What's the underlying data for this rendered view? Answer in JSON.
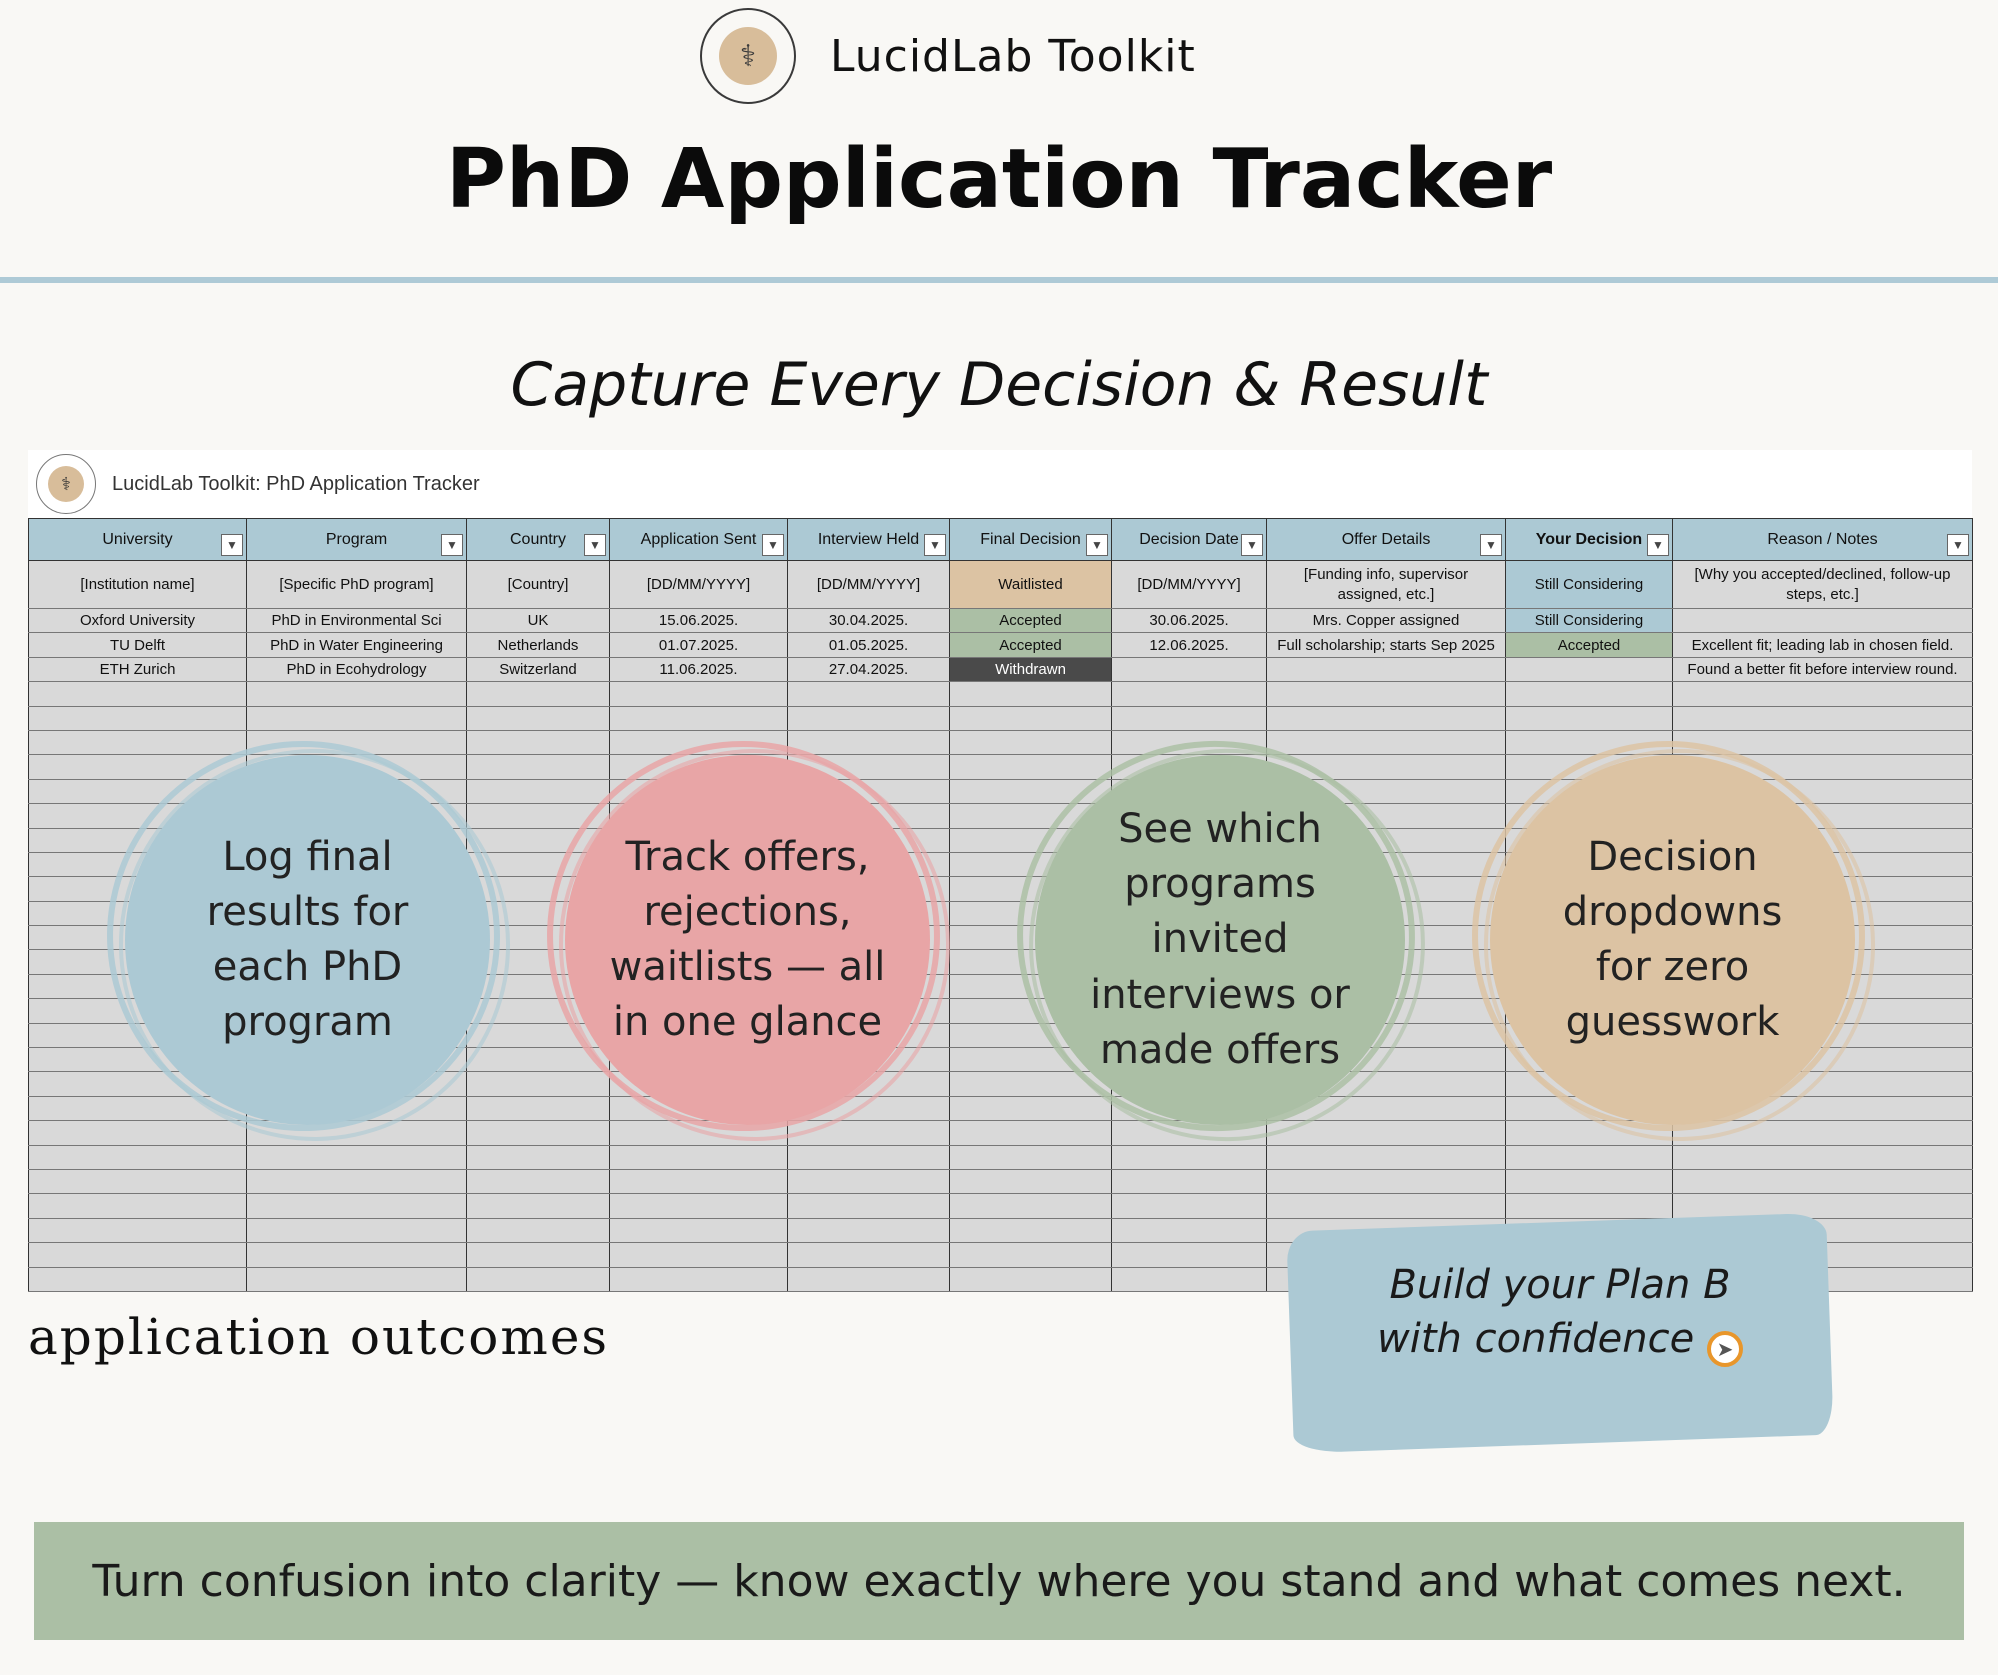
{
  "brand": {
    "name": "LucidLab Toolkit",
    "logo_icon": "microscope-icon"
  },
  "title": "PhD Application Tracker",
  "subtitle": "Capture Every Decision & Result",
  "sheet": {
    "title": "LucidLab Toolkit: PhD Application Tracker",
    "columns": [
      "University",
      "Program",
      "Country",
      "Application Sent",
      "Interview Held",
      "Final Decision",
      "Decision Date",
      "Offer Details",
      "Your Decision",
      "Reason / Notes"
    ],
    "rows": [
      [
        "[Institution name]",
        "[Specific PhD program]",
        "[Country]",
        "[DD/MM/YYYY]",
        "[DD/MM/YYYY]",
        "Waitlisted",
        "[DD/MM/YYYY]",
        "[Funding info, supervisor assigned, etc.]",
        "Still Considering",
        "[Why you accepted/declined, follow-up steps, etc.]"
      ],
      [
        "Oxford University",
        "PhD in Environmental Sci",
        "UK",
        "15.06.2025.",
        "30.04.2025.",
        "Accepted",
        "30.06.2025.",
        "Mrs. Copper assigned",
        "Still Considering",
        ""
      ],
      [
        "TU Delft",
        "PhD in Water Engineering",
        "Netherlands",
        "01.07.2025.",
        "01.05.2025.",
        "Accepted",
        "12.06.2025.",
        "Full scholarship; starts Sep 2025",
        "Accepted",
        "Excellent fit; leading lab in chosen field."
      ],
      [
        "ETH Zurich",
        "PhD in Ecohydrology",
        "Switzerland",
        "11.06.2025.",
        "27.04.2025.",
        "Withdrawn",
        "",
        "",
        "",
        "Found a better fit before interview round."
      ]
    ],
    "status_colors": {
      "Waitlisted": "#dcc3a3",
      "Accepted": "#abbfa5",
      "Withdrawn": "#4a4a4a",
      "Still Considering": "#acc9d4"
    }
  },
  "features": [
    "Log final results for each PhD program",
    "Track offers, rejections, waitlists — all in one glance",
    "See which programs invited interviews or made offers",
    "Decision dropdowns for zero guesswork"
  ],
  "outcomes_label": "application outcomes",
  "plan_b": {
    "line1": "Build your Plan B",
    "line2": "with confidence",
    "icon": "compass-icon"
  },
  "footer": "Turn confusion into clarity — know exactly where you stand and what comes next."
}
